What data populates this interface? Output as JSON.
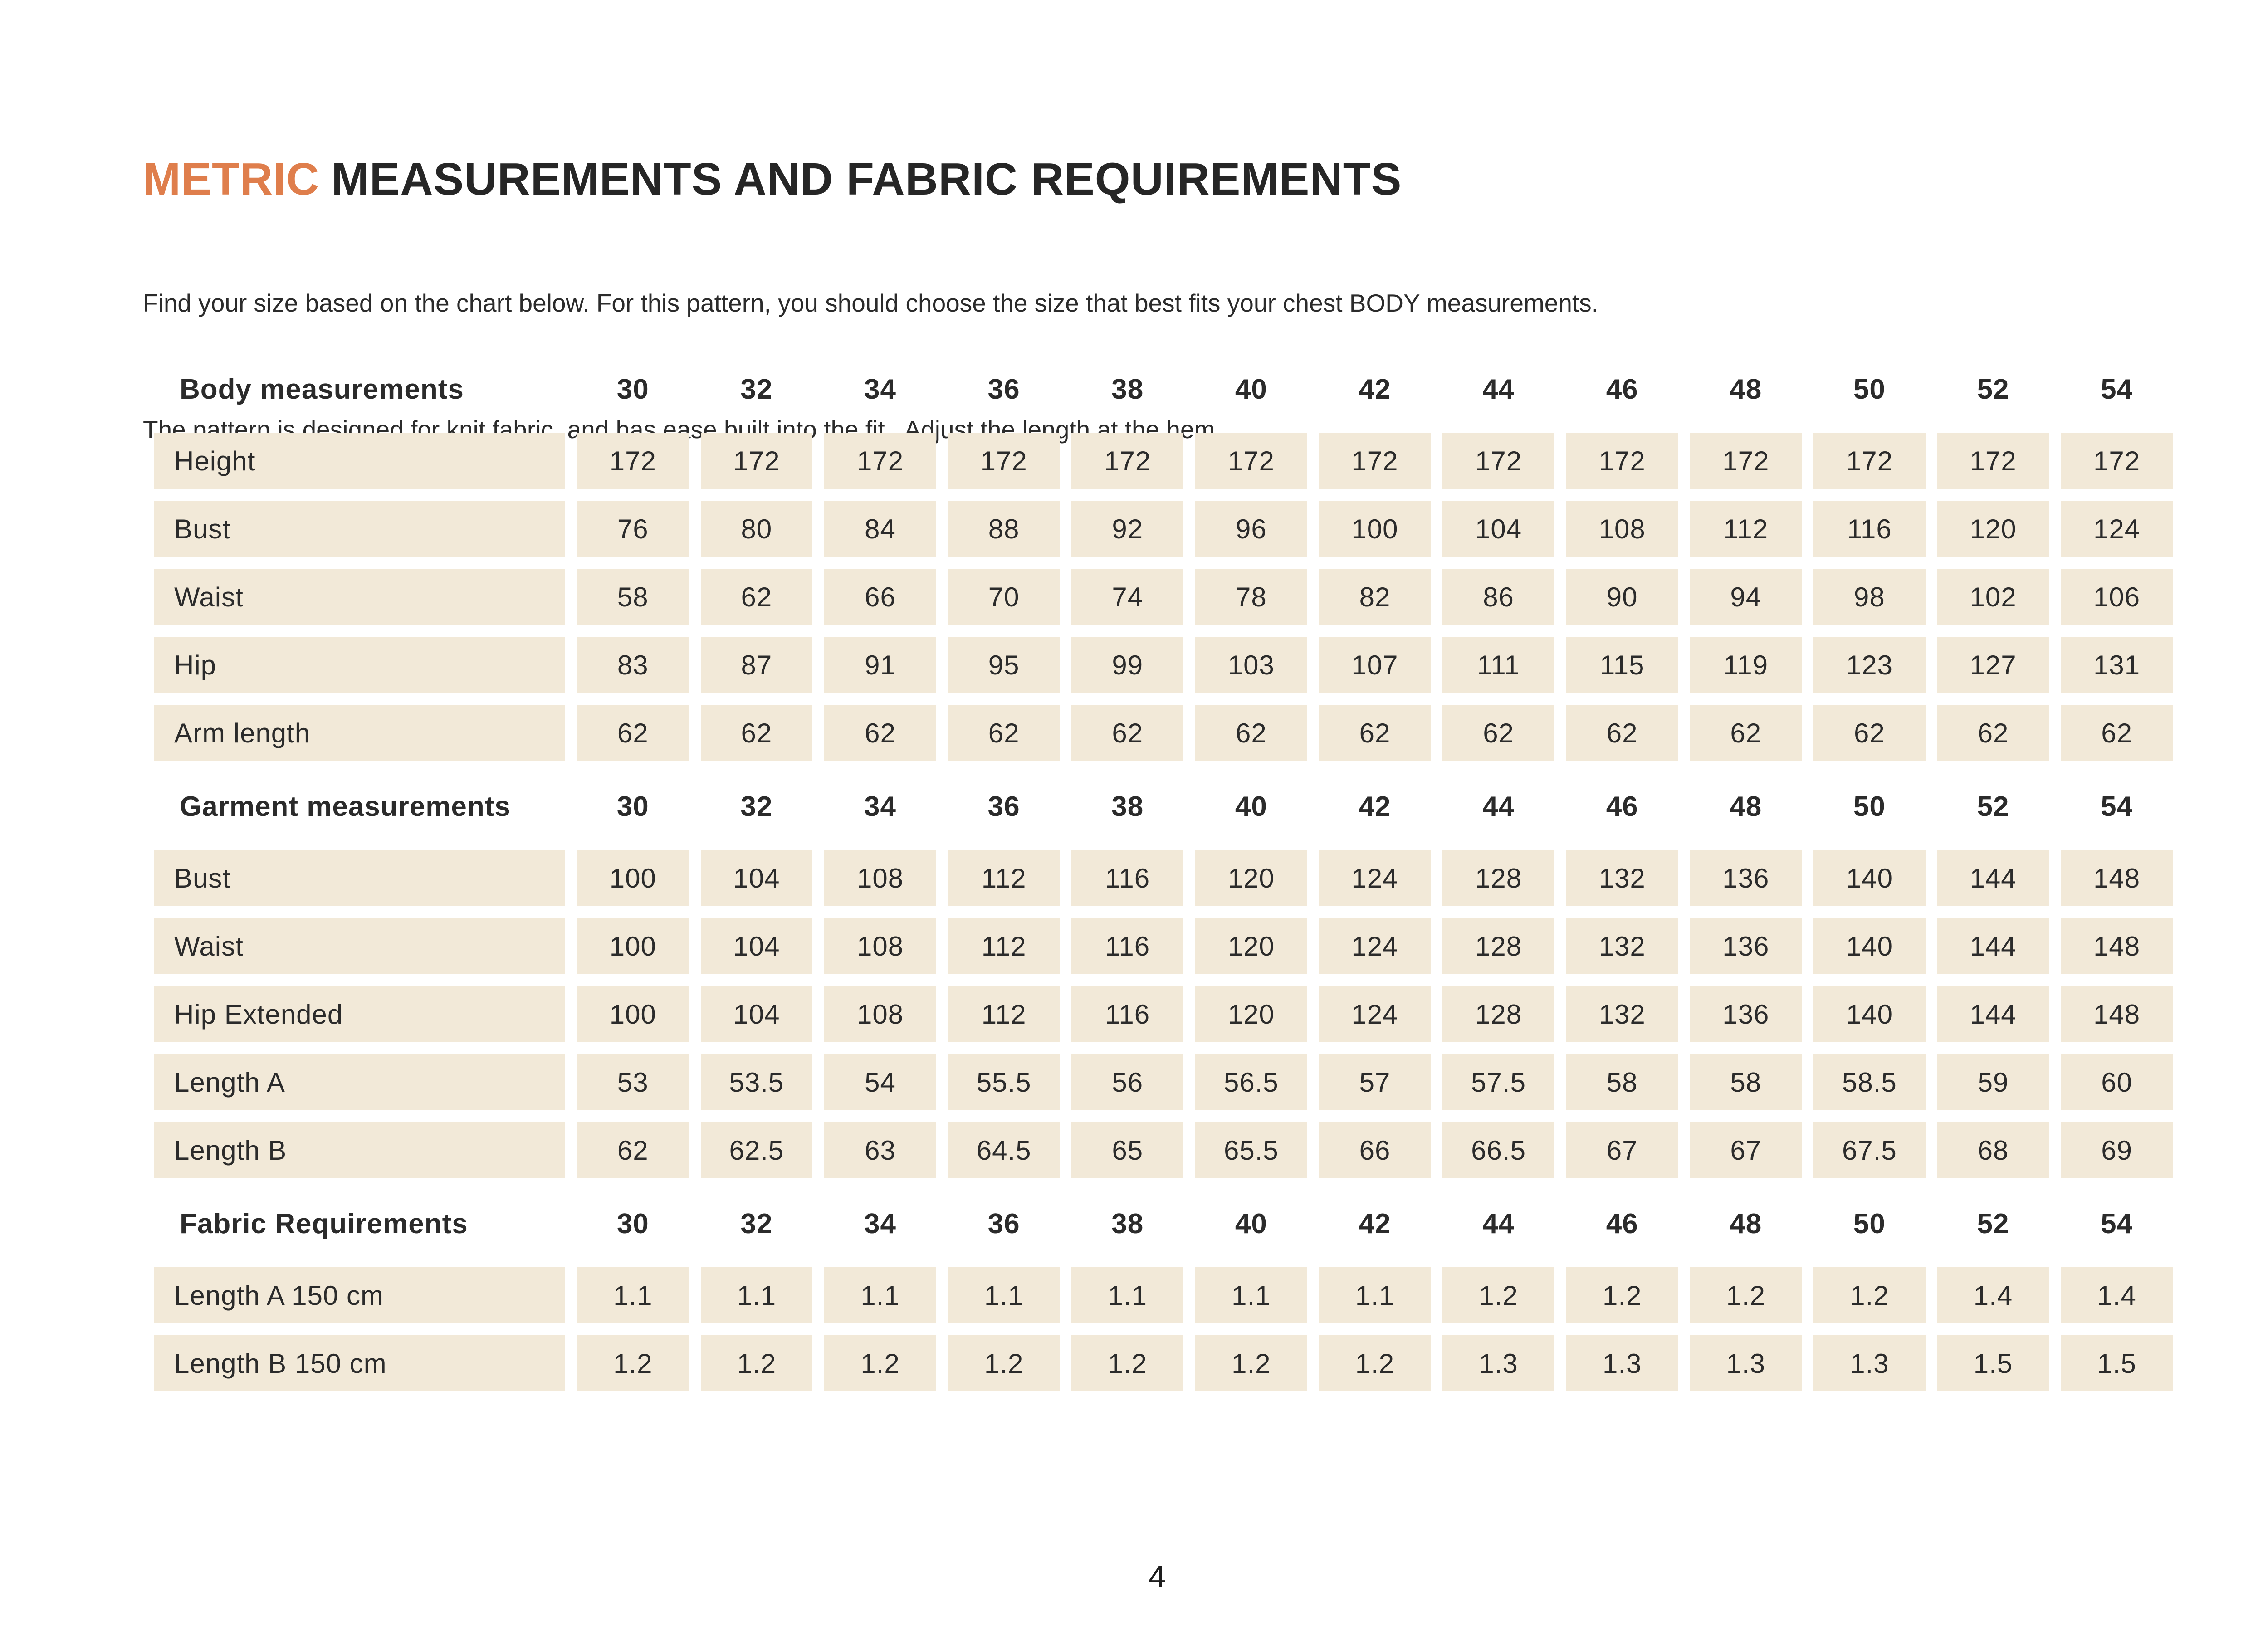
{
  "colors": {
    "accent": "#DF7E4C",
    "row_bg": "#F2E9D8",
    "text": "#2B2B2B",
    "title": "#262626"
  },
  "header": {
    "title_highlight": "METRIC",
    "title_rest": "MEASUREMENTS AND FABRIC REQUIREMENTS",
    "intro_line1": "Find your size based on the chart below. For this pattern, you should choose the size that best fits your chest BODY measurements.",
    "intro_line2": "The pattern is designed for knit fabric, and has ease built into the fit.  Adjust the length at the hem."
  },
  "table": {
    "sizes": [
      "30",
      "32",
      "34",
      "36",
      "38",
      "40",
      "42",
      "44",
      "46",
      "48",
      "50",
      "52",
      "54"
    ],
    "sections": [
      {
        "header": "Body measurements",
        "rows": [
          {
            "label": "Height",
            "values": [
              "172",
              "172",
              "172",
              "172",
              "172",
              "172",
              "172",
              "172",
              "172",
              "172",
              "172",
              "172",
              "172"
            ]
          },
          {
            "label": "Bust",
            "values": [
              "76",
              "80",
              "84",
              "88",
              "92",
              "96",
              "100",
              "104",
              "108",
              "112",
              "116",
              "120",
              "124"
            ]
          },
          {
            "label": "Waist",
            "values": [
              "58",
              "62",
              "66",
              "70",
              "74",
              "78",
              "82",
              "86",
              "90",
              "94",
              "98",
              "102",
              "106"
            ]
          },
          {
            "label": "Hip",
            "values": [
              "83",
              "87",
              "91",
              "95",
              "99",
              "103",
              "107",
              "111",
              "115",
              "119",
              "123",
              "127",
              "131"
            ]
          },
          {
            "label": "Arm length",
            "values": [
              "62",
              "62",
              "62",
              "62",
              "62",
              "62",
              "62",
              "62",
              "62",
              "62",
              "62",
              "62",
              "62"
            ]
          }
        ]
      },
      {
        "header": "Garment measurements",
        "rows": [
          {
            "label": "Bust",
            "values": [
              "100",
              "104",
              "108",
              "112",
              "116",
              "120",
              "124",
              "128",
              "132",
              "136",
              "140",
              "144",
              "148"
            ]
          },
          {
            "label": "Waist",
            "values": [
              "100",
              "104",
              "108",
              "112",
              "116",
              "120",
              "124",
              "128",
              "132",
              "136",
              "140",
              "144",
              "148"
            ]
          },
          {
            "label": "Hip Extended",
            "values": [
              "100",
              "104",
              "108",
              "112",
              "116",
              "120",
              "124",
              "128",
              "132",
              "136",
              "140",
              "144",
              "148"
            ]
          },
          {
            "label": "Length A",
            "values": [
              "53",
              "53.5",
              "54",
              "55.5",
              "56",
              "56.5",
              "57",
              "57.5",
              "58",
              "58",
              "58.5",
              "59",
              "60"
            ]
          },
          {
            "label": "Length B",
            "values": [
              "62",
              "62.5",
              "63",
              "64.5",
              "65",
              "65.5",
              "66",
              "66.5",
              "67",
              "67",
              "67.5",
              "68",
              "69"
            ]
          }
        ]
      },
      {
        "header": "Fabric Requirements",
        "rows": [
          {
            "label": "Length A 150 cm",
            "values": [
              "1.1",
              "1.1",
              "1.1",
              "1.1",
              "1.1",
              "1.1",
              "1.1",
              "1.2",
              "1.2",
              "1.2",
              "1.2",
              "1.4",
              "1.4"
            ]
          },
          {
            "label": "Length B 150 cm",
            "values": [
              "1.2",
              "1.2",
              "1.2",
              "1.2",
              "1.2",
              "1.2",
              "1.2",
              "1.3",
              "1.3",
              "1.3",
              "1.3",
              "1.5",
              "1.5"
            ]
          }
        ]
      }
    ]
  },
  "footer": {
    "page_number": "4"
  }
}
